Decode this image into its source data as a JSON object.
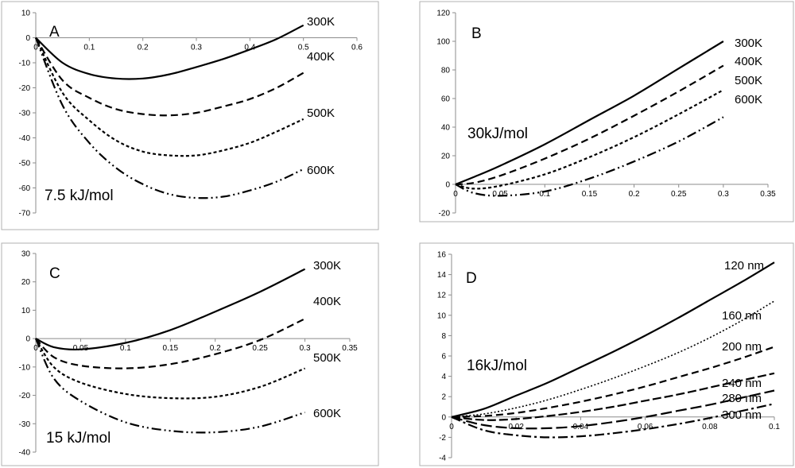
{
  "chart_data": [
    {
      "type": "line",
      "panel": "A",
      "annotation": "7.5 kJ/mol",
      "xlim": [
        0,
        0.6
      ],
      "ylim": [
        -70,
        10
      ],
      "xticks": [
        "0",
        "0.1",
        "0.2",
        "0.3",
        "0.4",
        "0.5",
        "0.6"
      ],
      "yticks": [
        "10",
        "0",
        "-10",
        "-20",
        "-30",
        "-40",
        "-50",
        "-60",
        "-70"
      ],
      "xtick_values": [
        0,
        0.1,
        0.2,
        0.3,
        0.4,
        0.5,
        0.6
      ],
      "ytick_values": [
        10,
        0,
        -10,
        -20,
        -30,
        -40,
        -50,
        -60,
        -70
      ],
      "series": [
        {
          "name": "300K",
          "style": "solid",
          "x": [
            0,
            0.05,
            0.1,
            0.15,
            0.2,
            0.25,
            0.3,
            0.35,
            0.4,
            0.45,
            0.5
          ],
          "y": [
            0,
            -10,
            -14.5,
            -16.3,
            -16.3,
            -14.6,
            -11.7,
            -8.5,
            -4.7,
            -0.5,
            5
          ]
        },
        {
          "name": "400K",
          "style": "dash",
          "x": [
            0,
            0.05,
            0.1,
            0.15,
            0.2,
            0.25,
            0.3,
            0.35,
            0.4,
            0.45,
            0.5
          ],
          "y": [
            0,
            -17,
            -24,
            -28.5,
            -30.5,
            -31,
            -30,
            -27.5,
            -24.5,
            -20,
            -14
          ]
        },
        {
          "name": "500K",
          "style": "dot",
          "x": [
            0,
            0.05,
            0.1,
            0.15,
            0.2,
            0.25,
            0.3,
            0.35,
            0.4,
            0.45,
            0.5
          ],
          "y": [
            0,
            -22,
            -33,
            -41,
            -45.5,
            -47,
            -47,
            -45,
            -42,
            -37.5,
            -32.5
          ]
        },
        {
          "name": "600K",
          "style": "dashdotdot",
          "x": [
            0,
            0.05,
            0.1,
            0.15,
            0.2,
            0.25,
            0.3,
            0.35,
            0.4,
            0.45,
            0.5
          ],
          "y": [
            0,
            -27,
            -42,
            -52,
            -58.5,
            -62.5,
            -64,
            -63.5,
            -61,
            -57.5,
            -52.5
          ]
        }
      ]
    },
    {
      "type": "line",
      "panel": "B",
      "annotation": "30kJ/mol",
      "xlim": [
        0,
        0.35
      ],
      "ylim": [
        -20,
        120
      ],
      "xticks": [
        "0",
        "0.05",
        "0.1",
        "0.15",
        "0.2",
        "0.25",
        "0.3",
        "0.35"
      ],
      "yticks": [
        "120",
        "100",
        "80",
        "60",
        "40",
        "20",
        "0",
        "-20"
      ],
      "xtick_values": [
        0,
        0.05,
        0.1,
        0.15,
        0.2,
        0.25,
        0.3,
        0.35
      ],
      "ytick_values": [
        120,
        100,
        80,
        60,
        40,
        20,
        0,
        -20
      ],
      "series": [
        {
          "name": "300K",
          "style": "solid",
          "x": [
            0,
            0.02,
            0.05,
            0.1,
            0.15,
            0.2,
            0.25,
            0.3
          ],
          "y": [
            0,
            5,
            13,
            28,
            45,
            62,
            81,
            100
          ]
        },
        {
          "name": "400K",
          "style": "dash",
          "x": [
            0,
            0.02,
            0.05,
            0.1,
            0.15,
            0.2,
            0.25,
            0.3
          ],
          "y": [
            0,
            1,
            6,
            18,
            32,
            48,
            65,
            83
          ]
        },
        {
          "name": "500K",
          "style": "dot",
          "x": [
            0,
            0.02,
            0.05,
            0.1,
            0.15,
            0.2,
            0.25,
            0.3
          ],
          "y": [
            0,
            -3,
            -1,
            7,
            19,
            33,
            49,
            66
          ]
        },
        {
          "name": "600K",
          "style": "dashdotdot",
          "x": [
            0,
            0.02,
            0.05,
            0.1,
            0.15,
            0.2,
            0.25,
            0.3
          ],
          "y": [
            0,
            -6,
            -8,
            -5,
            4,
            16,
            30,
            47
          ]
        }
      ]
    },
    {
      "type": "line",
      "panel": "C",
      "annotation": "15 kJ/mol",
      "xlim": [
        0,
        0.35
      ],
      "ylim": [
        -40,
        30
      ],
      "xticks": [
        "0",
        "0.05",
        "0.1",
        "0.15",
        "0.2",
        "0.25",
        "0.3",
        "0.35"
      ],
      "yticks": [
        "30",
        "20",
        "10",
        "0",
        "-10",
        "-20",
        "-30",
        "-40"
      ],
      "xtick_values": [
        0,
        0.05,
        0.1,
        0.15,
        0.2,
        0.25,
        0.3,
        0.35
      ],
      "ytick_values": [
        30,
        20,
        10,
        0,
        -10,
        -20,
        -30,
        -40
      ],
      "series": [
        {
          "name": "300K",
          "style": "solid",
          "x": [
            0,
            0.02,
            0.05,
            0.1,
            0.15,
            0.2,
            0.25,
            0.3
          ],
          "y": [
            0,
            -3,
            -3.8,
            -1.5,
            3,
            9.5,
            16.5,
            24.5
          ]
        },
        {
          "name": "400K",
          "style": "dash",
          "x": [
            0,
            0.02,
            0.05,
            0.1,
            0.15,
            0.2,
            0.25,
            0.3
          ],
          "y": [
            0,
            -6.5,
            -9.5,
            -10.5,
            -9,
            -5.5,
            -0.5,
            7
          ]
        },
        {
          "name": "500K",
          "style": "dot",
          "x": [
            0,
            0.02,
            0.05,
            0.1,
            0.15,
            0.2,
            0.25,
            0.3
          ],
          "y": [
            0,
            -10,
            -15.5,
            -19.5,
            -21,
            -20.5,
            -17,
            -10.5
          ]
        },
        {
          "name": "600K",
          "style": "dashdotdot",
          "x": [
            0,
            0.02,
            0.05,
            0.1,
            0.15,
            0.2,
            0.25,
            0.3
          ],
          "y": [
            0,
            -14,
            -22,
            -29.5,
            -32.5,
            -33,
            -31,
            -26
          ]
        }
      ]
    },
    {
      "type": "line",
      "panel": "D",
      "annotation": "16kJ/mol",
      "xlim": [
        0,
        0.1
      ],
      "ylim": [
        -4,
        16
      ],
      "xticks": [
        "0",
        "0.02",
        "0.04",
        "0.06",
        "0.08",
        "0.1"
      ],
      "yticks": [
        "16",
        "14",
        "12",
        "10",
        "8",
        "6",
        "4",
        "2",
        "0",
        "-2",
        "-4"
      ],
      "xtick_values": [
        0,
        0.02,
        0.04,
        0.06,
        0.08,
        0.1
      ],
      "ytick_values": [
        16,
        14,
        12,
        10,
        8,
        6,
        4,
        2,
        0,
        -2,
        -4
      ],
      "series": [
        {
          "name": "120 nm",
          "style": "solid",
          "x": [
            0,
            0.01,
            0.02,
            0.03,
            0.04,
            0.05,
            0.06,
            0.07,
            0.08,
            0.09,
            0.1
          ],
          "y": [
            0,
            0.8,
            2.1,
            3.4,
            4.9,
            6.4,
            8,
            9.7,
            11.5,
            13.3,
            15.2
          ]
        },
        {
          "name": "160 nm",
          "style": "dotfine",
          "x": [
            0,
            0.01,
            0.02,
            0.03,
            0.04,
            0.05,
            0.06,
            0.07,
            0.08,
            0.09,
            0.1
          ],
          "y": [
            0,
            0.3,
            0.9,
            1.7,
            2.7,
            3.8,
            5,
            6.3,
            7.8,
            9.5,
            11.4
          ]
        },
        {
          "name": "200 nm",
          "style": "dash",
          "x": [
            0,
            0.01,
            0.02,
            0.03,
            0.04,
            0.05,
            0.06,
            0.07,
            0.08,
            0.09,
            0.1
          ],
          "y": [
            0,
            0.1,
            0.4,
            0.9,
            1.5,
            2.2,
            3,
            3.9,
            4.8,
            5.8,
            6.9
          ]
        },
        {
          "name": "240 nm",
          "style": "longdash",
          "x": [
            0,
            0.01,
            0.02,
            0.03,
            0.04,
            0.05,
            0.06,
            0.07,
            0.08,
            0.09,
            0.1
          ],
          "y": [
            0,
            -0.3,
            -0.2,
            0.1,
            0.5,
            1,
            1.6,
            2.2,
            2.9,
            3.6,
            4.3
          ]
        },
        {
          "name": "280 nm",
          "style": "longdash2",
          "x": [
            0,
            0.01,
            0.02,
            0.03,
            0.04,
            0.05,
            0.06,
            0.07,
            0.08,
            0.09,
            0.1
          ],
          "y": [
            0,
            -0.8,
            -1.1,
            -1.1,
            -0.9,
            -0.5,
            0,
            0.6,
            1.2,
            1.9,
            2.6
          ]
        },
        {
          "name": "300 nm",
          "style": "dashdot",
          "x": [
            0,
            0.01,
            0.02,
            0.03,
            0.04,
            0.05,
            0.06,
            0.07,
            0.08,
            0.09,
            0.1
          ],
          "y": [
            0,
            -1.3,
            -1.8,
            -2,
            -1.9,
            -1.6,
            -1.2,
            -0.7,
            -0.1,
            0.6,
            1.3
          ]
        }
      ]
    }
  ]
}
